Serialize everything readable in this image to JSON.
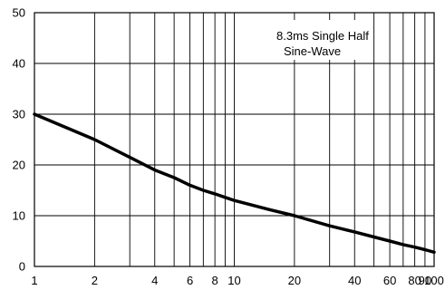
{
  "chart_data": {
    "type": "line",
    "title": "",
    "xlabel": "",
    "ylabel": "",
    "x_scale": "log",
    "xlim": [
      1,
      100
    ],
    "ylim": [
      0,
      50
    ],
    "grid": true,
    "x_ticks": [
      1,
      2,
      4,
      6,
      8,
      10,
      20,
      40,
      60,
      80,
      90,
      100
    ],
    "x_tick_labels": [
      "1",
      "2",
      "4",
      "6",
      "8",
      "10",
      "20",
      "40",
      "60",
      "80",
      "90",
      "100"
    ],
    "x_grid": [
      2,
      3,
      4,
      5,
      6,
      7,
      8,
      9,
      10,
      20,
      30,
      40,
      50,
      60,
      70,
      80,
      90
    ],
    "y_ticks": [
      0,
      10,
      20,
      30,
      40,
      50
    ],
    "y_tick_labels": [
      "0",
      "10",
      "20",
      "30",
      "40",
      "50"
    ],
    "annotation": [
      "8.3ms Single Half",
      "Sine-Wave"
    ],
    "series": [
      {
        "x": [
          1,
          2,
          3,
          4,
          5,
          6,
          7,
          8,
          9,
          10,
          15,
          20,
          30,
          40,
          50,
          60,
          70,
          80,
          90,
          100
        ],
        "y": [
          30,
          25,
          21.5,
          19,
          17.5,
          16,
          15,
          14.3,
          13.6,
          13,
          11.2,
          10,
          8,
          6.8,
          5.8,
          5,
          4.3,
          3.8,
          3.3,
          2.8
        ]
      }
    ]
  }
}
